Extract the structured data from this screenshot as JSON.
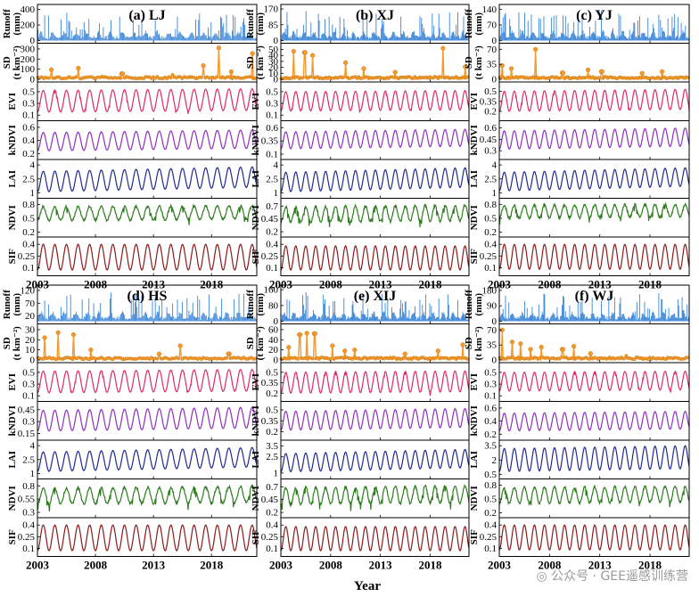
{
  "chart_data": {
    "type": "line",
    "xlabel": "Year",
    "x_ticks": [
      "2003",
      "2008",
      "2013",
      "2018"
    ],
    "x_range": [
      2003,
      2021.9
    ],
    "row_labels": {
      "Runoff": [
        "Runoff",
        "(mm)"
      ],
      "SD": [
        "SD",
        "(t km⁻²)"
      ],
      "EVI": [
        "EVI"
      ],
      "kNDVI": [
        "kNDVI"
      ],
      "LAI": [
        "LAI"
      ],
      "NDVI": [
        "NDVI"
      ],
      "SIF": [
        "SIF"
      ]
    },
    "series_colors": {
      "Runoff": "#3c86d8",
      "SD": "#f39a2a",
      "EVI": "#e0286a",
      "kNDVI": "#8f2fbf",
      "LAI": "#1f2a8e",
      "NDVI": "#2d7d1f",
      "SIF": "#8b1a1a"
    },
    "panels": [
      {
        "id": "a",
        "title": "(a) LJ",
        "rows": {
          "Runoff": {
            "ticks": [
              "400",
              "200",
              "0"
            ],
            "ylim": [
              0,
              430
            ],
            "peak": 360
          },
          "SD": {
            "ticks": [
              "300",
              "200",
              "100",
              "0"
            ],
            "ylim": [
              0,
              330
            ],
            "peaks": [
              [
                2004.2,
                95
              ],
              [
                2006.5,
                110
              ],
              [
                2008.6,
                40
              ],
              [
                2010.3,
                55
              ],
              [
                2014.6,
                45
              ],
              [
                2017.3,
                135
              ],
              [
                2018.6,
                310
              ],
              [
                2019.7,
                75
              ],
              [
                2021.5,
                255
              ]
            ]
          },
          "EVI": {
            "ticks": [
              "0.5",
              "0.3",
              "0.1"
            ],
            "ylim": [
              0.05,
              0.62
            ],
            "lo": 0.15,
            "hi": 0.52,
            "trend": 0.03
          },
          "kNDVI": {
            "ticks": [
              "0.6",
              "0.4",
              "0.2"
            ],
            "ylim": [
              0.15,
              0.66
            ],
            "lo": 0.24,
            "hi": 0.52,
            "trend": 0.04
          },
          "LAI": {
            "ticks": [
              "4",
              "2.5",
              "1"
            ],
            "ylim": [
              0.7,
              4.3
            ],
            "lo": 1.1,
            "hi": 3.3,
            "trend": 0.5
          },
          "NDVI": {
            "ticks": [
              "0.8",
              "0.5",
              "0.2"
            ],
            "ylim": [
              0.15,
              0.88
            ],
            "lo": 0.45,
            "hi": 0.75,
            "trend": 0.03
          },
          "SIF": {
            "ticks": [
              "0.4",
              "0.25",
              "0.1"
            ],
            "ylim": [
              0.03,
              0.46
            ],
            "lo": 0.07,
            "hi": 0.4,
            "trend": 0.0
          }
        }
      },
      {
        "id": "b",
        "title": "(b) XJ",
        "rows": {
          "Runoff": {
            "ticks": [
              "170",
              "85",
              "0"
            ],
            "ylim": [
              0,
              180
            ],
            "peak": 160
          },
          "SD": {
            "ticks": [
              "50",
              "40",
              "30",
              "20",
              "10",
              "0"
            ],
            "ylim": [
              0,
              56
            ],
            "peaks": [
              [
                2004.3,
                47
              ],
              [
                2005.4,
                45
              ],
              [
                2006.2,
                40
              ],
              [
                2009.5,
                28
              ],
              [
                2011.3,
                18
              ],
              [
                2014.5,
                12
              ],
              [
                2019.3,
                52
              ],
              [
                2021.5,
                21
              ]
            ]
          },
          "EVI": {
            "ticks": [
              "0.5",
              "0.3",
              "0.1"
            ],
            "ylim": [
              0.05,
              0.62
            ],
            "lo": 0.17,
            "hi": 0.5,
            "trend": 0.02
          },
          "kNDVI": {
            "ticks": [
              "0.6",
              "0.35",
              "0.1"
            ],
            "ylim": [
              0.05,
              0.68
            ],
            "lo": 0.2,
            "hi": 0.52,
            "trend": 0.05
          },
          "LAI": {
            "ticks": [
              "4",
              "2.5",
              "1"
            ],
            "ylim": [
              0.7,
              4.3
            ],
            "lo": 1.1,
            "hi": 3.2,
            "trend": 0.5
          },
          "NDVI": {
            "ticks": [
              "0.7",
              "0.45",
              "0.2"
            ],
            "ylim": [
              0.15,
              0.8
            ],
            "lo": 0.38,
            "hi": 0.68,
            "trend": 0.04
          },
          "SIF": {
            "ticks": [
              "0.4",
              "0.25",
              "0.1"
            ],
            "ylim": [
              0.03,
              0.46
            ],
            "lo": 0.07,
            "hi": 0.38,
            "trend": 0.0
          }
        }
      },
      {
        "id": "c",
        "title": "(c) YJ",
        "rows": {
          "Runoff": {
            "ticks": [
              "140",
              "70",
              "0"
            ],
            "ylim": [
              0,
              150
            ],
            "peak": 135
          },
          "SD": {
            "ticks": [
              "70",
              "35",
              "0"
            ],
            "ylim": [
              0,
              78
            ],
            "peaks": [
              [
                2003.3,
                32
              ],
              [
                2004.2,
                25
              ],
              [
                2006.6,
                70
              ],
              [
                2009.3,
                15
              ],
              [
                2011.8,
                22
              ],
              [
                2013.2,
                18
              ],
              [
                2017.2,
                14
              ],
              [
                2019.2,
                18
              ]
            ]
          },
          "EVI": {
            "ticks": [
              "0.5",
              "0.35",
              "0.2"
            ],
            "ylim": [
              0.1,
              0.6
            ],
            "lo": 0.2,
            "hi": 0.5,
            "trend": 0.03
          },
          "kNDVI": {
            "ticks": [
              "0.6",
              "0.45",
              "0.3"
            ],
            "ylim": [
              0.22,
              0.66
            ],
            "lo": 0.32,
            "hi": 0.56,
            "trend": 0.04
          },
          "LAI": {
            "ticks": [
              "4",
              "2.5",
              "1"
            ],
            "ylim": [
              0.7,
              4.3
            ],
            "lo": 1.2,
            "hi": 3.2,
            "trend": 0.5
          },
          "NDVI": {
            "ticks": [
              "0.8",
              "0.5",
              "0.2"
            ],
            "ylim": [
              0.15,
              0.88
            ],
            "lo": 0.5,
            "hi": 0.78,
            "trend": 0.03
          },
          "SIF": {
            "ticks": [
              "0.4",
              "0.25",
              "0.1"
            ],
            "ylim": [
              0.03,
              0.46
            ],
            "lo": 0.08,
            "hi": 0.4,
            "trend": 0.0
          }
        }
      },
      {
        "id": "d",
        "title": "(d) HS",
        "rows": {
          "Runoff": {
            "ticks": [
              "120",
              "70",
              "20"
            ],
            "ylim": [
              0,
              130
            ],
            "peak": 115
          },
          "SD": {
            "ticks": [
              "30",
              "20",
              "10",
              "0"
            ],
            "ylim": [
              0,
              33
            ],
            "peaks": [
              [
                2003.6,
                22
              ],
              [
                2004.8,
                27
              ],
              [
                2006.1,
                25
              ],
              [
                2007.6,
                10
              ],
              [
                2013.5,
                6
              ],
              [
                2015.3,
                14
              ],
              [
                2019.5,
                6
              ]
            ]
          },
          "EVI": {
            "ticks": [
              "0.5",
              "0.3",
              "0.1"
            ],
            "ylim": [
              0.05,
              0.62
            ],
            "lo": 0.15,
            "hi": 0.52,
            "trend": 0.03
          },
          "kNDVI": {
            "ticks": [
              "0.45",
              "0.3",
              "0.15"
            ],
            "ylim": [
              0.1,
              0.52
            ],
            "lo": 0.18,
            "hi": 0.44,
            "trend": 0.04
          },
          "LAI": {
            "ticks": [
              "4",
              "2.5",
              "1"
            ],
            "ylim": [
              0.7,
              4.3
            ],
            "lo": 1.2,
            "hi": 3.3,
            "trend": 0.5
          },
          "NDVI": {
            "ticks": [
              "0.8",
              "0.55",
              "0.3"
            ],
            "ylim": [
              0.25,
              0.88
            ],
            "lo": 0.45,
            "hi": 0.75,
            "trend": 0.04
          },
          "SIF": {
            "ticks": [
              "0.4",
              "0.25",
              "0.1"
            ],
            "ylim": [
              0.03,
              0.46
            ],
            "lo": 0.07,
            "hi": 0.4,
            "trend": 0.0
          }
        }
      },
      {
        "id": "e",
        "title": "(e) XIJ",
        "rows": {
          "Runoff": {
            "ticks": [
              "160",
              "80",
              "0"
            ],
            "ylim": [
              0,
              170
            ],
            "peak": 150
          },
          "SD": {
            "ticks": [
              "60",
              "40",
              "20",
              "0"
            ],
            "ylim": [
              0,
              66
            ],
            "peaks": [
              [
                2003.8,
                25
              ],
              [
                2004.9,
                50
              ],
              [
                2005.6,
                53
              ],
              [
                2006.4,
                52
              ],
              [
                2008.2,
                28
              ],
              [
                2009.4,
                18
              ],
              [
                2010.4,
                20
              ],
              [
                2015.5,
                12
              ],
              [
                2018.8,
                18
              ],
              [
                2021.3,
                30
              ]
            ]
          },
          "EVI": {
            "ticks": [
              "0.5",
              "0.35",
              "0.2"
            ],
            "ylim": [
              0.12,
              0.6
            ],
            "lo": 0.2,
            "hi": 0.5,
            "trend": 0.02
          },
          "kNDVI": {
            "ticks": [
              "0.5",
              "0.35",
              "0.2"
            ],
            "ylim": [
              0.12,
              0.58
            ],
            "lo": 0.22,
            "hi": 0.48,
            "trend": 0.04
          },
          "LAI": {
            "ticks": [
              "3.5",
              "2.5",
              "1"
            ],
            "ylim": [
              0.7,
              3.8
            ],
            "lo": 1.1,
            "hi": 2.8,
            "trend": 0.4
          },
          "NDVI": {
            "ticks": [
              "0.7",
              "0.45",
              "0.2"
            ],
            "ylim": [
              0.15,
              0.8
            ],
            "lo": 0.35,
            "hi": 0.68,
            "trend": 0.04
          },
          "SIF": {
            "ticks": [
              "0.4",
              "0.25",
              "0.1"
            ],
            "ylim": [
              0.03,
              0.46
            ],
            "lo": 0.07,
            "hi": 0.38,
            "trend": 0.0
          }
        }
      },
      {
        "id": "f",
        "title": "(f) WJ",
        "rows": {
          "Runoff": {
            "ticks": [
              "180",
              "90",
              "0"
            ],
            "ylim": [
              0,
              195
            ],
            "peak": 165
          },
          "SD": {
            "ticks": [
              "70",
              "35",
              "0"
            ],
            "ylim": [
              0,
              78
            ],
            "peaks": [
              [
                2003.3,
                70
              ],
              [
                2004.3,
                42
              ],
              [
                2005.1,
                38
              ],
              [
                2006.1,
                25
              ],
              [
                2007.2,
                30
              ],
              [
                2009.3,
                25
              ],
              [
                2010.4,
                32
              ],
              [
                2012.1,
                15
              ],
              [
                2015.6,
                10
              ],
              [
                2019.7,
                8
              ]
            ]
          },
          "EVI": {
            "ticks": [
              "0.5",
              "0.3",
              "0.1"
            ],
            "ylim": [
              0.05,
              0.62
            ],
            "lo": 0.18,
            "hi": 0.5,
            "trend": 0.02
          },
          "kNDVI": {
            "ticks": [
              "0.6",
              "0.4",
              "0.2"
            ],
            "ylim": [
              0.15,
              0.66
            ],
            "lo": 0.25,
            "hi": 0.52,
            "trend": 0.03
          },
          "LAI": {
            "ticks": [
              "3.5",
              "2",
              "0.5"
            ],
            "ylim": [
              0.3,
              3.8
            ],
            "lo": 0.8,
            "hi": 3.2,
            "trend": 0.3
          },
          "NDVI": {
            "ticks": [
              "0.8",
              "0.5",
              "0.2"
            ],
            "ylim": [
              0.15,
              0.88
            ],
            "lo": 0.4,
            "hi": 0.75,
            "trend": 0.03
          },
          "SIF": {
            "ticks": [
              "0.4",
              "0.25",
              "0.1"
            ],
            "ylim": [
              0.03,
              0.46
            ],
            "lo": 0.08,
            "hi": 0.4,
            "trend": 0.0
          }
        }
      }
    ]
  },
  "watermark": {
    "text": "公众号 · GEE遥感训练营",
    "icon": "wechat-icon"
  }
}
